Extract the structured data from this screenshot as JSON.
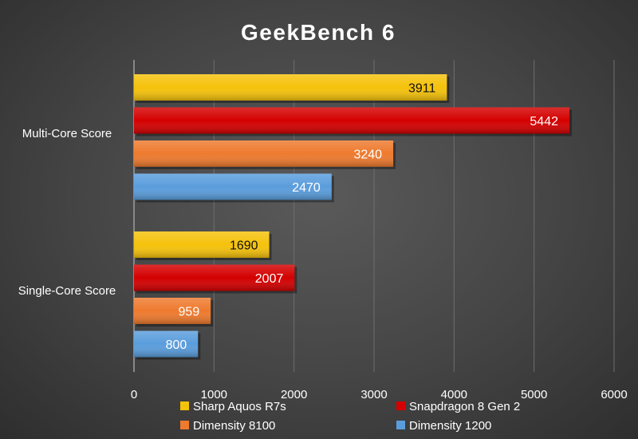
{
  "chart_data": {
    "type": "bar",
    "orientation": "horizontal",
    "title": "GeekBench 6",
    "categories": [
      "Multi-Core Score",
      "Single-Core Score"
    ],
    "series": [
      {
        "name": "Sharp Aquos R7s",
        "color": "#f5c20b",
        "values": [
          3911,
          1690
        ]
      },
      {
        "name": "Snapdragon 8 Gen 2",
        "color": "#d40000",
        "values": [
          5442,
          2007
        ]
      },
      {
        "name": "Dimensity 8100",
        "color": "#ee7a2e",
        "values": [
          3240,
          959
        ]
      },
      {
        "name": "Dimensity 1200",
        "color": "#5a9ddc",
        "values": [
          2470,
          800
        ]
      }
    ],
    "xlim": [
      0,
      6000
    ],
    "xticks": [
      "0",
      "1000",
      "2000",
      "3000",
      "4000",
      "5000",
      "6000"
    ],
    "grid": true,
    "legend_position": "bottom",
    "data_labels": true
  }
}
